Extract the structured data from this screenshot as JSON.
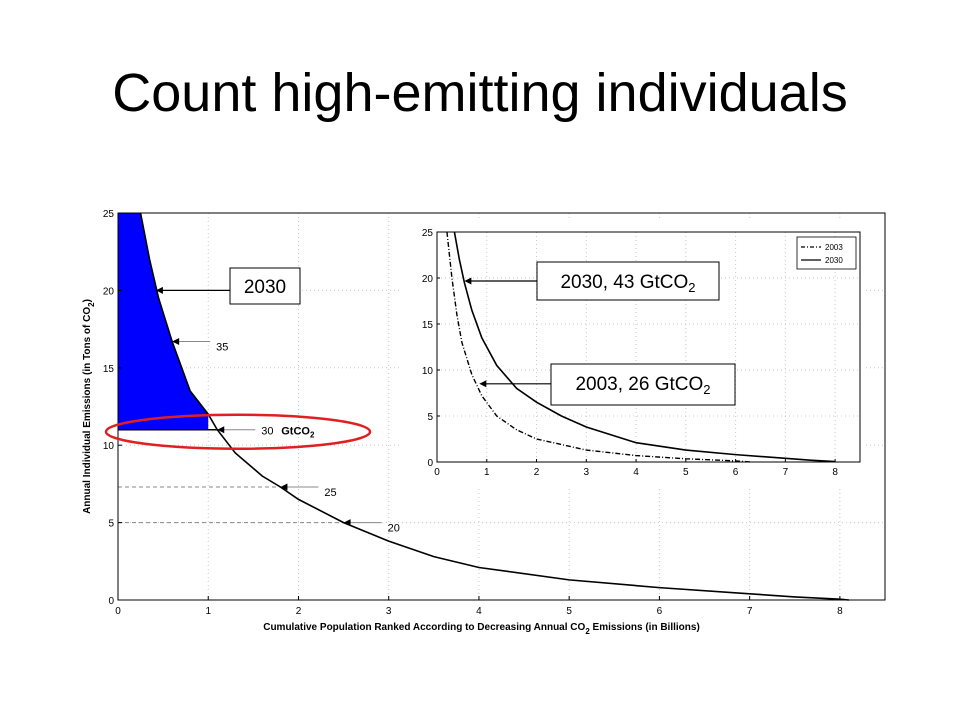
{
  "slide": {
    "title": "Count high-emitting individuals"
  },
  "chart_data": [
    {
      "type": "line",
      "name": "main",
      "xlabel": "Cumulative Population Ranked According to Decreasing Annual CO2 Emissions (in Billions)",
      "xlabel_parts": [
        "Cumulative Population Ranked According to Decreasing Annual CO",
        "2",
        " Emissions (in Billions)"
      ],
      "ylabel": "Annual Individual Emissions (in Tons of CO2)",
      "ylabel_parts": [
        "Annual Individual Emissions (in Tons of CO",
        "2",
        ")"
      ],
      "xlim": [
        0,
        8.5
      ],
      "ylim": [
        0,
        25
      ],
      "xticks": [
        0,
        1,
        2,
        3,
        4,
        5,
        6,
        7,
        8
      ],
      "yticks": [
        0,
        5,
        10,
        15,
        20,
        25
      ],
      "grid": true,
      "series": [
        {
          "x": [
            0.25,
            0.3,
            0.35,
            0.45,
            0.6,
            0.8,
            1.0,
            1.1,
            1.3,
            1.6,
            1.8,
            2.0,
            2.5,
            3.0,
            3.5,
            4.0,
            5.0,
            6.0,
            7.0,
            7.5,
            8.0,
            8.1
          ],
          "y": [
            25,
            23.5,
            22.0,
            19.5,
            16.7,
            13.5,
            12.0,
            11.0,
            9.5,
            8.0,
            7.3,
            6.5,
            5.0,
            3.8,
            2.8,
            2.1,
            1.3,
            0.8,
            0.4,
            0.2,
            0.05,
            0.0
          ]
        }
      ],
      "shaded_region": {
        "label": "2030",
        "x_from": 0,
        "x_to": 1.0,
        "y_above": 11.0,
        "color": "#0000ff"
      },
      "threshold_lines": [
        {
          "label": "30",
          "y": 11.0,
          "x_end": 1.1
        },
        {
          "label": "25",
          "y": 7.3,
          "x_end": 1.8
        },
        {
          "label": "20",
          "y": 5.0,
          "x_end": 2.5
        }
      ],
      "annotations": [
        {
          "text": "35",
          "x": 0.6,
          "y": 16.7
        },
        {
          "text": "30",
          "x": 1.1,
          "y": 11.0
        },
        {
          "text": "25",
          "x": 1.8,
          "y": 7.3
        },
        {
          "text": "20",
          "x": 2.5,
          "y": 5.0
        }
      ],
      "unit_anno": {
        "text": "GtCO",
        "sub": "2"
      },
      "callout": {
        "text": "2030",
        "x": 0.42,
        "y": 20.0
      },
      "highlight_ellipse": {
        "color": "#e02020",
        "around_y": 11.0
      }
    },
    {
      "type": "line",
      "name": "inset",
      "xlim": [
        0,
        8.5
      ],
      "ylim": [
        0,
        25
      ],
      "xticks": [
        0,
        1,
        2,
        3,
        4,
        5,
        6,
        7,
        8
      ],
      "yticks": [
        0,
        5,
        10,
        15,
        20,
        25
      ],
      "grid": true,
      "legend": {
        "placement": "top-right",
        "entries": [
          "2003",
          "2030"
        ]
      },
      "series": [
        {
          "name": "2003",
          "style": "dashdot",
          "x": [
            0.2,
            0.3,
            0.4,
            0.5,
            0.7,
            0.9,
            1.2,
            1.6,
            2.0,
            3.0,
            4.0,
            5.0,
            6.0,
            6.3
          ],
          "y": [
            25,
            20.0,
            16.0,
            13.0,
            9.5,
            7.2,
            5.0,
            3.5,
            2.5,
            1.3,
            0.7,
            0.35,
            0.12,
            0.0
          ]
        },
        {
          "name": "2030",
          "style": "solid",
          "x": [
            0.35,
            0.45,
            0.55,
            0.7,
            0.9,
            1.2,
            1.6,
            2.0,
            2.5,
            3.0,
            4.0,
            5.0,
            6.0,
            7.0,
            7.5,
            8.0
          ],
          "y": [
            25,
            22.0,
            19.5,
            16.5,
            13.5,
            10.5,
            8.0,
            6.5,
            5.0,
            3.8,
            2.1,
            1.3,
            0.8,
            0.4,
            0.2,
            0.05
          ]
        }
      ],
      "callouts": [
        {
          "text": "2030, 43 GtCO",
          "sub": "2",
          "x": 0.55,
          "y": 19.5
        },
        {
          "text": "2003, 26 GtCO",
          "sub": "2",
          "x": 0.85,
          "y": 8.5
        }
      ]
    }
  ]
}
